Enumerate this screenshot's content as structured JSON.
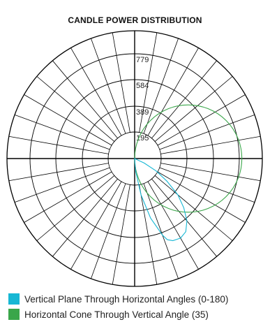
{
  "chart_data": {
    "type": "polar",
    "title": "CANDLE POWER DISTRIBUTION",
    "max_value": 974,
    "radial_labels": [
      "195",
      "389",
      "584",
      "779"
    ],
    "grid": true,
    "colors": {
      "vertical": "#17b7d4",
      "horizontal": "#3aa64a",
      "grid": "#000000"
    },
    "series": [
      {
        "name": "Vertical Plane Through Horizontal Angles (0-180)",
        "color": "#17b7d4",
        "points": [
          {
            "angle": 0,
            "value": 0
          },
          {
            "angle": 5,
            "value": 100
          },
          {
            "angle": 10,
            "value": 280
          },
          {
            "angle": 15,
            "value": 470
          },
          {
            "angle": 20,
            "value": 620
          },
          {
            "angle": 22,
            "value": 667
          },
          {
            "angle": 25,
            "value": 690
          },
          {
            "angle": 30,
            "value": 700
          },
          {
            "angle": 35,
            "value": 680
          },
          {
            "angle": 40,
            "value": 620
          },
          {
            "angle": 45,
            "value": 530
          },
          {
            "angle": 50,
            "value": 430
          },
          {
            "angle": 55,
            "value": 300
          },
          {
            "angle": 60,
            "value": 190
          },
          {
            "angle": 65,
            "value": 80
          },
          {
            "angle": 70,
            "value": 0
          }
        ]
      },
      {
        "name": "Horizontal Cone Through Vertical Angle (35)",
        "color": "#3aa64a",
        "circle_center_angle": 90,
        "circle_center_value": 409,
        "circle_radius_value": 409
      }
    ],
    "legend": [
      {
        "label": "Vertical Plane Through Horizontal Angles (0-180)",
        "color": "#17b7d4"
      },
      {
        "label": "Horizontal Cone Through Vertical Angle (35)",
        "color": "#3aa64a"
      }
    ]
  }
}
